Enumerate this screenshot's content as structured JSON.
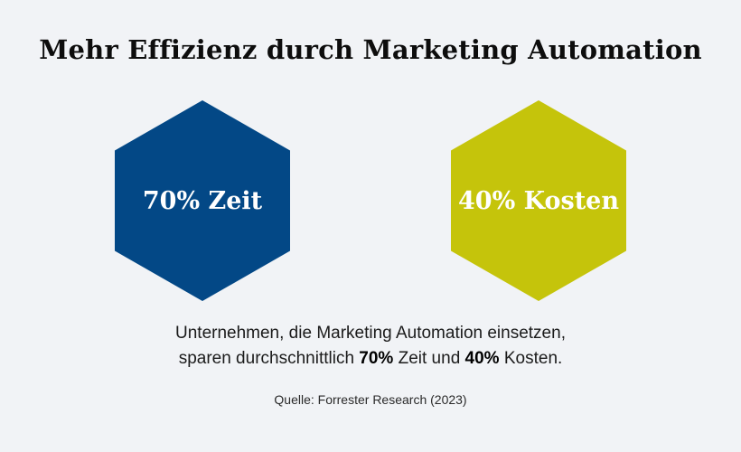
{
  "title": "Mehr Effizienz durch Marketing Automation",
  "hexagons": [
    {
      "label": "70% Zeit",
      "color": "#034886"
    },
    {
      "label": "40% Kosten",
      "color": "#c5c40b"
    }
  ],
  "description": {
    "line1": "Unternehmen, die Marketing Automation einsetzen,",
    "line2_prefix": "sparen durchschnittlich",
    "value_time": "70%",
    "line2_middle": "Zeit und",
    "value_cost": "40%",
    "line2_suffix": "Kosten."
  },
  "source": "Quelle: Forrester Research (2023)"
}
